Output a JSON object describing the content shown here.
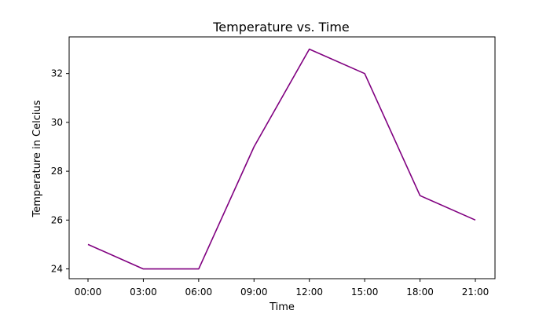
{
  "chart_data": {
    "type": "line",
    "title": "Temperature vs. Time",
    "xlabel": "Time",
    "ylabel": "Temperature in Celcius",
    "categories": [
      "00:00",
      "03:00",
      "06:00",
      "09:00",
      "12:00",
      "15:00",
      "18:00",
      "21:00"
    ],
    "series": [
      {
        "name": "Temperature",
        "values": [
          25,
          24,
          24,
          29,
          33,
          32,
          27,
          26
        ],
        "color": "#800080"
      }
    ],
    "ylim": [
      23.6,
      33.5
    ],
    "yticks": [
      24,
      26,
      28,
      30,
      32
    ],
    "grid": false,
    "legend": "none"
  }
}
